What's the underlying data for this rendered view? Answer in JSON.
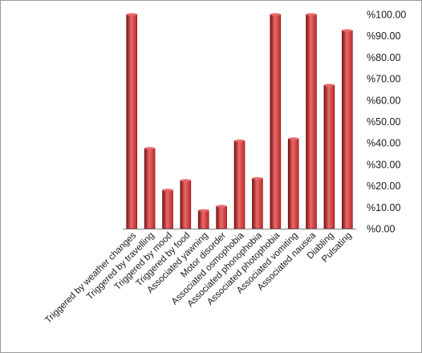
{
  "chart_data": {
    "type": "bar",
    "categories": [
      "Triggered by weather changes",
      "Triggered by travelling",
      "Triggered by mood",
      "Triggered by food",
      "Associated yawning",
      "Motor disorder",
      "Associated osmophobia",
      "Associated phonophobia",
      "Associated photophobia",
      "Associated vomiting",
      "Associated nausea",
      "Diabling",
      "Pulsating"
    ],
    "values": [
      100,
      37.5,
      18,
      22.5,
      8.5,
      10.5,
      41,
      23.5,
      100,
      42,
      100,
      67,
      92.5
    ],
    "ylim": [
      0,
      100
    ],
    "yticks": [
      "%0.00",
      "%10.00",
      "%20.00",
      "%30.00",
      "%40.00",
      "%50.00",
      "%60.00",
      "%70.00",
      "%80.00",
      "%90.00",
      "%100.00"
    ],
    "y_axis_side": "right",
    "grid": false,
    "legend": "none",
    "bar_color": "#c0282a",
    "bar_highlight": "#e86a6a",
    "bar_shadow": "#7a1010"
  }
}
